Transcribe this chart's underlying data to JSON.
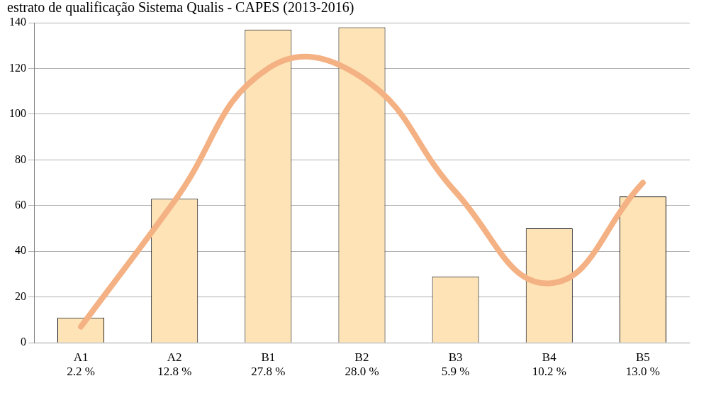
{
  "chart_data": {
    "type": "bar",
    "title": "estrato de qualificação Sistema Qualis - CAPES (2013-2016)",
    "categories": [
      "A1\n2.2 %",
      "A2\n12.8 %",
      "B1\n27.8 %",
      "B2\n28.0 %",
      "B3\n5.9 %",
      "B4\n10.2 %",
      "B5\n13.0 %"
    ],
    "series": [
      {
        "color": "#fde3b5",
        "values": [
          11,
          63,
          137,
          138,
          29,
          50,
          64
        ]
      },
      {
        "type": "line",
        "color": "#f4b183",
        "values": [
          7,
          62,
          120,
          116,
          66,
          26,
          70
        ]
      }
    ],
    "ylim": [
      0,
      140
    ],
    "yticks": [
      0,
      20,
      40,
      60,
      80,
      100,
      120,
      140
    ],
    "grid": "y",
    "legend": false
  }
}
